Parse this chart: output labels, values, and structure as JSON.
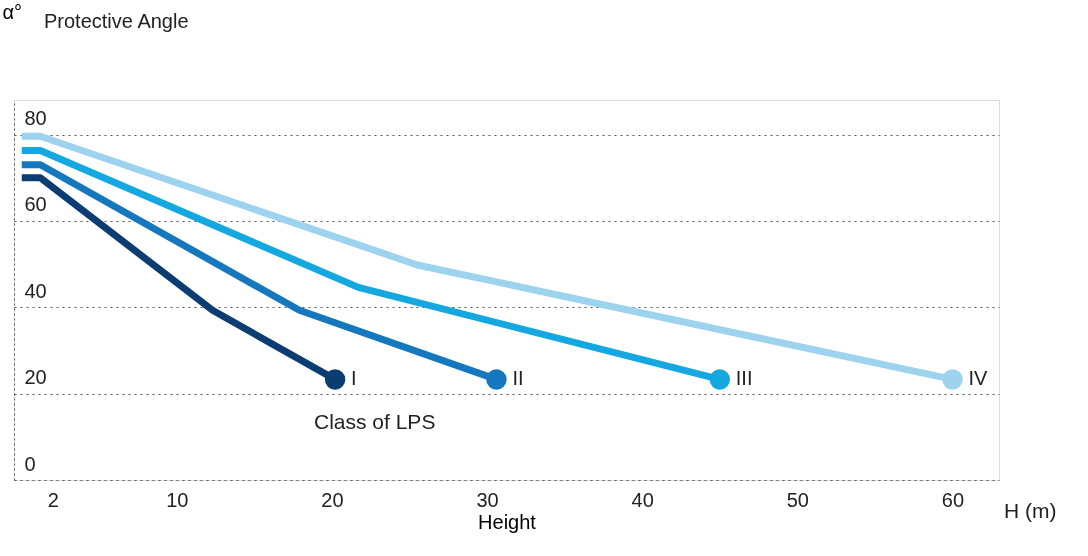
{
  "chart_data": {
    "type": "line",
    "title": "Protective Angle",
    "ylabel": "α°",
    "xlabel": "Height",
    "xlim": [
      -0.5,
      63
    ],
    "ylim": [
      0,
      88
    ],
    "xticks": [
      2,
      10,
      20,
      30,
      40,
      50,
      60
    ],
    "yticks": [
      0,
      20,
      40,
      60,
      80
    ],
    "grid": "y",
    "line_style": "solid",
    "annotations": [
      "H (m)",
      "Class of LPS"
    ],
    "series": [
      {
        "name": "I",
        "color": "#0b3d72",
        "x": [
          0,
          1.2,
          12.3,
          20.2
        ],
        "values": [
          70,
          70,
          39.3,
          23.3
        ]
      },
      {
        "name": "II",
        "color": "#1577be",
        "x": [
          0,
          1.2,
          17.9,
          30.6
        ],
        "values": [
          73,
          73,
          39.3,
          23.3
        ]
      },
      {
        "name": "III",
        "color": "#15a8e0",
        "x": [
          0,
          1.2,
          21.7,
          45
        ],
        "values": [
          76.3,
          76.3,
          44.6,
          23.3
        ]
      },
      {
        "name": "IV",
        "color": "#9dd3ee",
        "x": [
          0,
          1.2,
          25.5,
          60
        ],
        "values": [
          79.6,
          79.6,
          49.8,
          23.3
        ]
      }
    ]
  }
}
